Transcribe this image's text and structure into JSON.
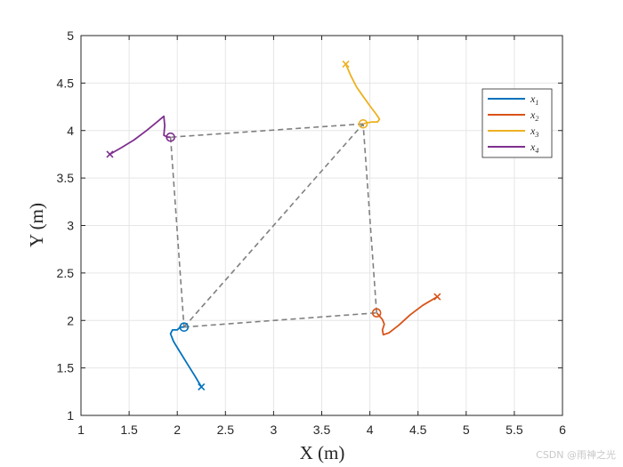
{
  "chart_data": {
    "type": "line",
    "xlabel": "X (m)",
    "ylabel": "Y (m)",
    "xlim": [
      1,
      6
    ],
    "ylim": [
      1,
      5
    ],
    "xticks": [
      1,
      1.5,
      2,
      2.5,
      3,
      3.5,
      4,
      4.5,
      5,
      5.5,
      6
    ],
    "yticks": [
      1,
      1.5,
      2,
      2.5,
      3,
      3.5,
      4,
      4.5,
      5
    ],
    "xtick_labels": [
      "1",
      "1.5",
      "2",
      "2.5",
      "3",
      "3.5",
      "4",
      "4.5",
      "5",
      "5.5",
      "6"
    ],
    "ytick_labels": [
      "1",
      "1.5",
      "2",
      "2.5",
      "3",
      "3.5",
      "4",
      "4.5",
      "5"
    ],
    "grid": true,
    "legend_position": "top-right",
    "series": [
      {
        "name": "x",
        "subscript": "1",
        "color": "#0072BD",
        "start": [
          2.25,
          1.3
        ],
        "end": [
          2.07,
          1.93
        ],
        "points": [
          [
            2.25,
            1.3
          ],
          [
            2.18,
            1.42
          ],
          [
            2.1,
            1.55
          ],
          [
            2.02,
            1.68
          ],
          [
            1.96,
            1.78
          ],
          [
            1.93,
            1.86
          ],
          [
            1.95,
            1.9
          ],
          [
            2.0,
            1.9
          ],
          [
            2.03,
            1.93
          ],
          [
            2.07,
            1.93
          ]
        ]
      },
      {
        "name": "x",
        "subscript": "2",
        "color": "#D95319",
        "start": [
          4.7,
          2.25
        ],
        "end": [
          4.07,
          2.08
        ],
        "points": [
          [
            4.7,
            2.25
          ],
          [
            4.55,
            2.16
          ],
          [
            4.42,
            2.06
          ],
          [
            4.3,
            1.95
          ],
          [
            4.2,
            1.87
          ],
          [
            4.14,
            1.85
          ],
          [
            4.13,
            1.9
          ],
          [
            4.15,
            1.96
          ],
          [
            4.13,
            2.01
          ],
          [
            4.07,
            2.08
          ]
        ]
      },
      {
        "name": "x",
        "subscript": "3",
        "color": "#EDB120",
        "start": [
          3.75,
          4.7
        ],
        "end": [
          3.93,
          4.07
        ],
        "points": [
          [
            3.75,
            4.7
          ],
          [
            3.8,
            4.58
          ],
          [
            3.86,
            4.46
          ],
          [
            3.93,
            4.36
          ],
          [
            4.0,
            4.26
          ],
          [
            4.06,
            4.18
          ],
          [
            4.1,
            4.12
          ],
          [
            4.08,
            4.09
          ],
          [
            4.02,
            4.09
          ],
          [
            3.96,
            4.08
          ],
          [
            3.93,
            4.07
          ]
        ]
      },
      {
        "name": "x",
        "subscript": "4",
        "color": "#7E2F8E",
        "start": [
          1.3,
          3.75
        ],
        "end": [
          1.93,
          3.93
        ],
        "points": [
          [
            1.3,
            3.75
          ],
          [
            1.42,
            3.82
          ],
          [
            1.55,
            3.9
          ],
          [
            1.68,
            4.0
          ],
          [
            1.79,
            4.09
          ],
          [
            1.86,
            4.15
          ],
          [
            1.87,
            4.05
          ],
          [
            1.86,
            3.95
          ],
          [
            1.9,
            3.93
          ],
          [
            1.93,
            3.93
          ]
        ]
      }
    ],
    "formation_edges": [
      [
        [
          2.07,
          1.93
        ],
        [
          4.07,
          2.08
        ]
      ],
      [
        [
          4.07,
          2.08
        ],
        [
          3.93,
          4.07
        ]
      ],
      [
        [
          3.93,
          4.07
        ],
        [
          1.93,
          3.93
        ]
      ],
      [
        [
          1.93,
          3.93
        ],
        [
          2.07,
          1.93
        ]
      ],
      [
        [
          2.07,
          1.93
        ],
        [
          3.93,
          4.07
        ]
      ]
    ],
    "formation_edge_color": "#808080"
  },
  "watermark": "CSDN @雨神之光"
}
